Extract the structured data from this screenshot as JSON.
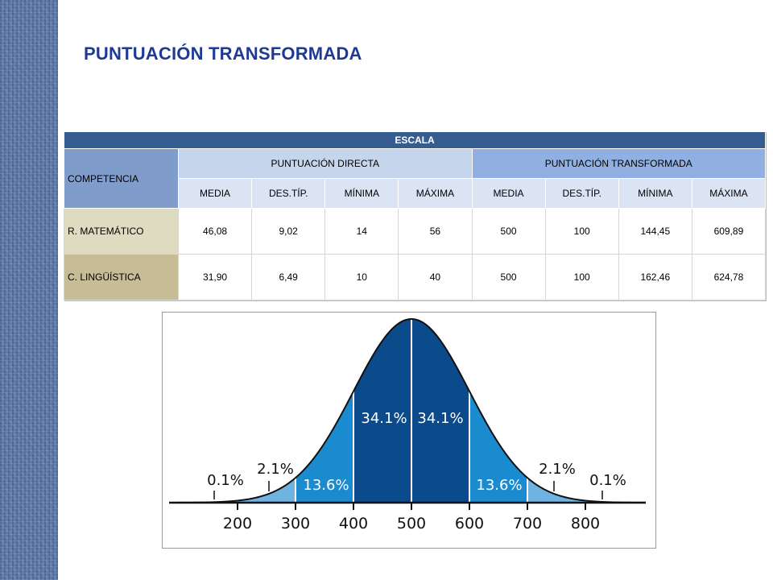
{
  "title": "PUNTUACIÓN TRANSFORMADA",
  "table": {
    "header_escala": "ESCALA",
    "competencia_header": "COMPETENCIA",
    "group_directa": "PUNTUACIÓN  DIRECTA",
    "group_transformada": "PUNTUACIÓN  TRANSFORMADA",
    "sub_headers": [
      "MEDIA",
      "DES.TÍP.",
      "MÍNIMA",
      "MÁXIMA",
      "MEDIA",
      "DES.TÍP.",
      "MÍNIMA",
      "MÁXIMA"
    ],
    "rows": [
      {
        "name": "R. MATEMÁTICO",
        "values": [
          "46,08",
          "9,02",
          "14",
          "56",
          "500",
          "100",
          "144,45",
          "609,89"
        ]
      },
      {
        "name": "C. LINGÜÍSTICA",
        "values": [
          "31,90",
          "6,49",
          "10",
          "40",
          "500",
          "100",
          "162,46",
          "624,78"
        ]
      }
    ],
    "colors": {
      "escala": "#355d8f",
      "competencia": "#7f9ccb",
      "directa": "#c5d5ec",
      "transformada": "#8fb0e0",
      "matematico": "#dedbc1",
      "linguistica": "#c6bd97"
    }
  },
  "figure": {
    "ticks": [
      "200",
      "300",
      "400",
      "500",
      "600",
      "700",
      "800"
    ],
    "percent_labels": {
      "outer": "0.1%",
      "tail": "2.1%",
      "inner": "13.6%",
      "center": "34.1%"
    },
    "colors": {
      "center": "#0b4a8b",
      "inner": "#1b8bd0",
      "tail": "#6fb3e3",
      "outer": "#a6d1ef"
    }
  }
}
